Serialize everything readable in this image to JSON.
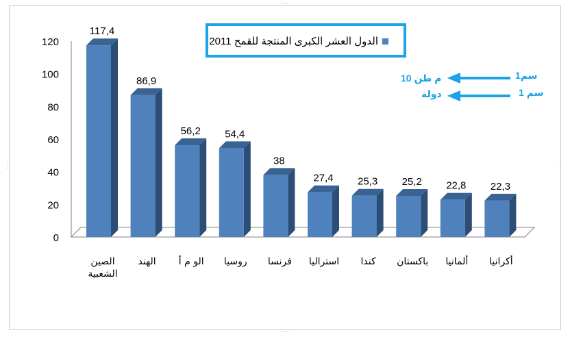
{
  "chart_data": {
    "type": "bar",
    "title": "الدول العشر الكبرى المنتجة للقمح 2011",
    "categories": [
      "الصين الشعبية",
      "الهند",
      "الو م أ",
      "روسيا",
      "فرنسا",
      "استراليا",
      "كندا",
      "باكستان",
      "ألمانيا",
      "أكرانيا"
    ],
    "values": [
      117.4,
      86.9,
      56.2,
      54.4,
      38,
      27.4,
      25.3,
      25.2,
      22.8,
      22.3
    ],
    "value_labels": [
      "117,4",
      "86,9",
      "56,2",
      "54,4",
      "38",
      "27,4",
      "25,3",
      "25,2",
      "22,8",
      "22,3"
    ],
    "yticks": [
      "0",
      "20",
      "40",
      "60",
      "80",
      "100",
      "120"
    ],
    "ylim": [
      0,
      120
    ],
    "bar_color": "#4f81bd",
    "legend_position": "top-center",
    "grid": false,
    "style": "3d-column"
  },
  "annotations": {
    "row1_left": "10 م طن",
    "row1_right": "1سم",
    "row2_left": "دولة",
    "row2_right": "1 سم",
    "arrow_color": "#1aa3e6"
  }
}
